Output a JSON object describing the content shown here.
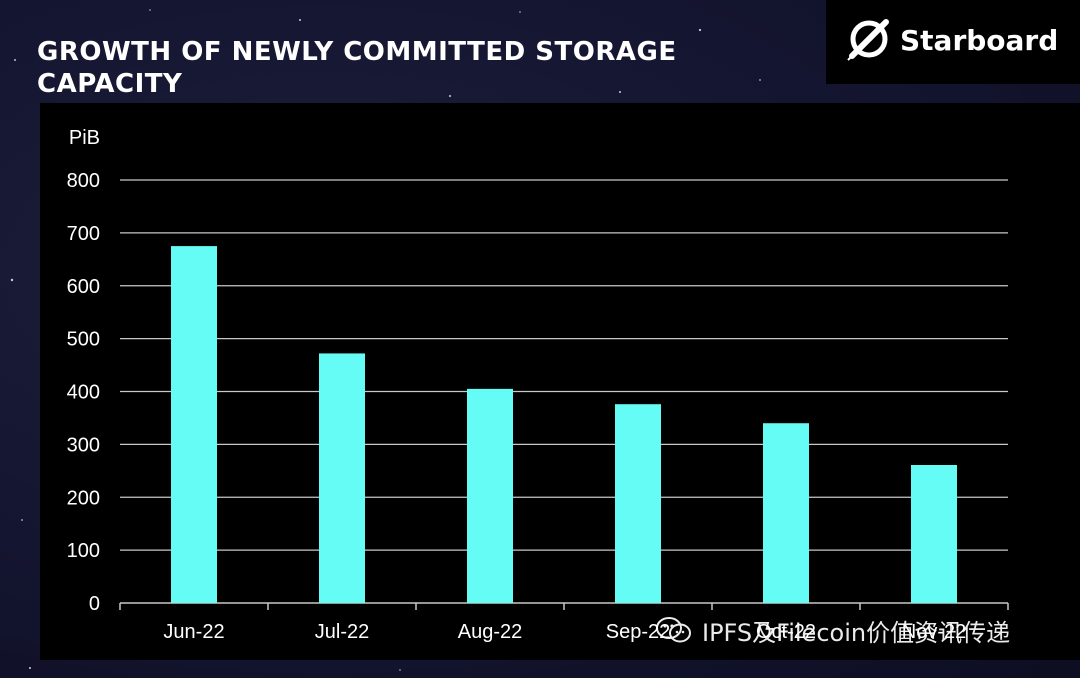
{
  "header": {
    "title": "GROWTH OF NEWLY COMMITTED STORAGE CAPACITY",
    "logo_text": "Starboard"
  },
  "watermark": {
    "text": "IPFS及Filecoin价值资讯传递"
  },
  "colors": {
    "bar": "#66fcf6",
    "panel": "#000000",
    "grid": "#c8c8c8",
    "text": "#ffffff"
  },
  "chart_data": {
    "type": "bar",
    "categories": [
      "Jun-22",
      "Jul-22",
      "Aug-22",
      "Sep-22",
      "Oct-22",
      "Nov-22"
    ],
    "values": [
      675,
      472,
      405,
      376,
      340,
      261
    ],
    "ylabel": "PiB",
    "ylim": [
      0,
      800
    ],
    "yticks": [
      0,
      100,
      200,
      300,
      400,
      500,
      600,
      700,
      800
    ],
    "grid": true,
    "legend": "none"
  }
}
